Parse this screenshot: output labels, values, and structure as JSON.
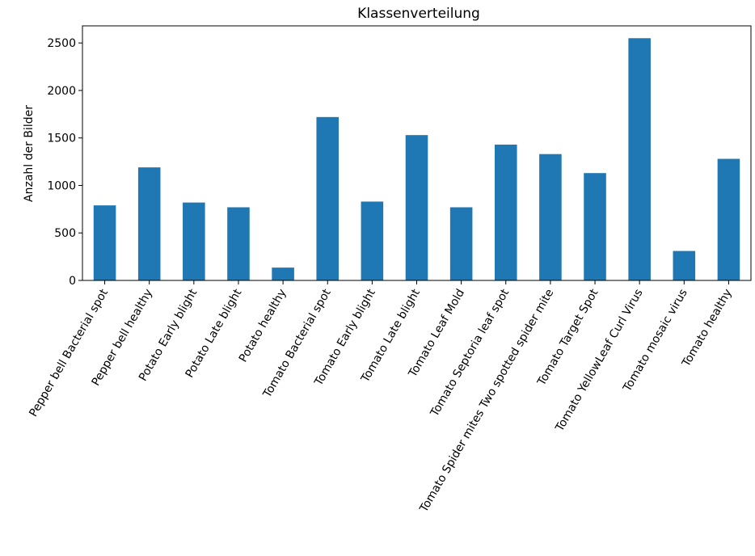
{
  "chart_data": {
    "type": "bar",
    "title": "Klassenverteilung",
    "xlabel": "",
    "ylabel": "Anzahl der Bilder",
    "ylim": [
      0,
      2680
    ],
    "yticks": [
      0,
      500,
      1000,
      1500,
      2000,
      2500
    ],
    "grid": false,
    "legend": "none",
    "color": "#1f77b4",
    "categories": [
      "Pepper bell Bacterial spot",
      "Pepper bell healthy",
      "Potato Early blight",
      "Potato Late blight",
      "Potato healthy",
      "Tomato Bacterial spot",
      "Tomato Early blight",
      "Tomato Late blight",
      "Tomato Leaf Mold",
      "Tomato Septoria leaf spot",
      "Tomato Spider mites Two spotted spider mite",
      "Tomato Target Spot",
      "Tomato YellowLeaf Curl Virus",
      "Tomato mosaic virus",
      "Tomato healthy"
    ],
    "values": [
      790,
      1190,
      820,
      770,
      135,
      1720,
      830,
      1530,
      770,
      1430,
      1330,
      1130,
      2550,
      310,
      1280
    ]
  }
}
